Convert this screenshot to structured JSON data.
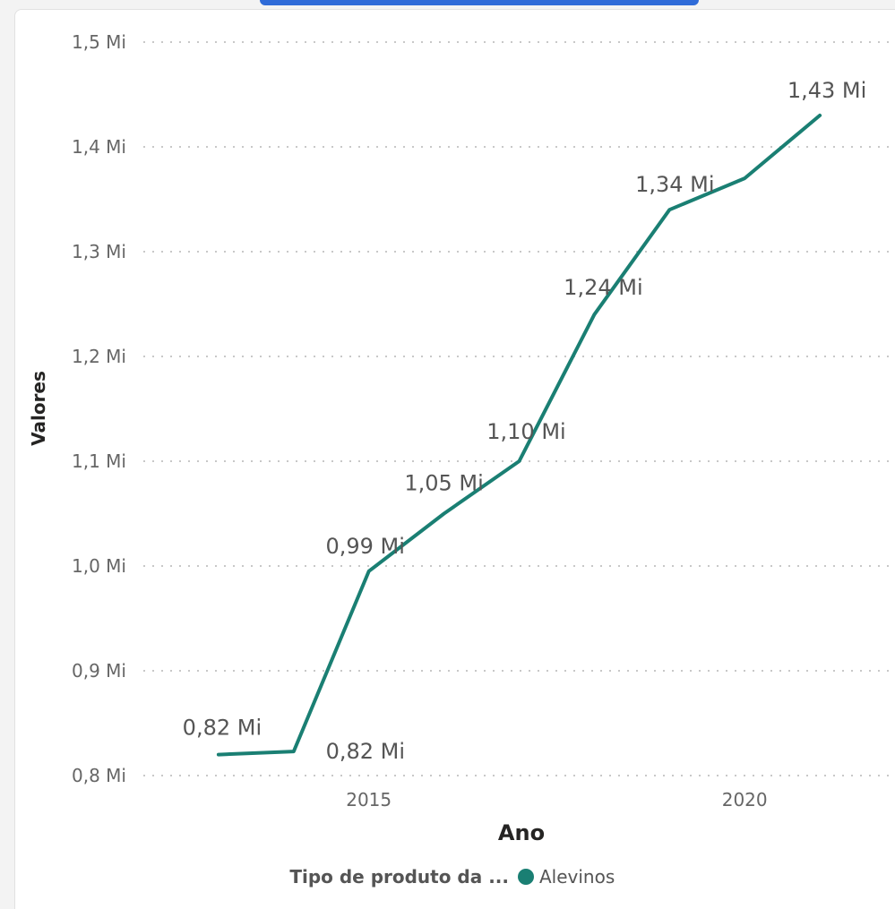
{
  "chart_data": {
    "type": "line",
    "xlabel": "Ano",
    "ylabel": "Valores",
    "x": [
      2013,
      2014,
      2015,
      2016,
      2017,
      2018,
      2019,
      2020,
      2021
    ],
    "series": [
      {
        "name": "Alevinos",
        "values": [
          0.82,
          0.823,
          0.995,
          1.05,
          1.1,
          1.24,
          1.34,
          1.37,
          1.43
        ],
        "labels": [
          "0,82 Mi",
          "0,82 Mi",
          "0,99 Mi",
          "1,05 Mi",
          "1,10 Mi",
          "1,24 Mi",
          "1,34 Mi",
          "",
          "1,43 Mi"
        ],
        "color": "#1a7f73"
      }
    ],
    "ylim": [
      0.8,
      1.5
    ],
    "xlim": [
      2012,
      2022
    ],
    "yticks": [
      {
        "value": 1.5,
        "label": "1,5 Mi"
      },
      {
        "value": 1.4,
        "label": "1,4 Mi"
      },
      {
        "value": 1.3,
        "label": "1,3 Mi"
      },
      {
        "value": 1.2,
        "label": "1,2 Mi"
      },
      {
        "value": 1.1,
        "label": "1,1 Mi"
      },
      {
        "value": 1.0,
        "label": "1,0 Mi"
      },
      {
        "value": 0.9,
        "label": "0,9 Mi"
      },
      {
        "value": 0.8,
        "label": "0,8 Mi"
      }
    ],
    "xticks": [
      {
        "value": 2015,
        "label": "2015"
      },
      {
        "value": 2020,
        "label": "2020"
      }
    ],
    "grid": true,
    "legend": {
      "title": "Tipo de produto da ...",
      "position": "bottom"
    }
  },
  "colors": {
    "line": "#1a7f73",
    "grid": "#c8c8c8",
    "accent": "#2f6bd8"
  }
}
